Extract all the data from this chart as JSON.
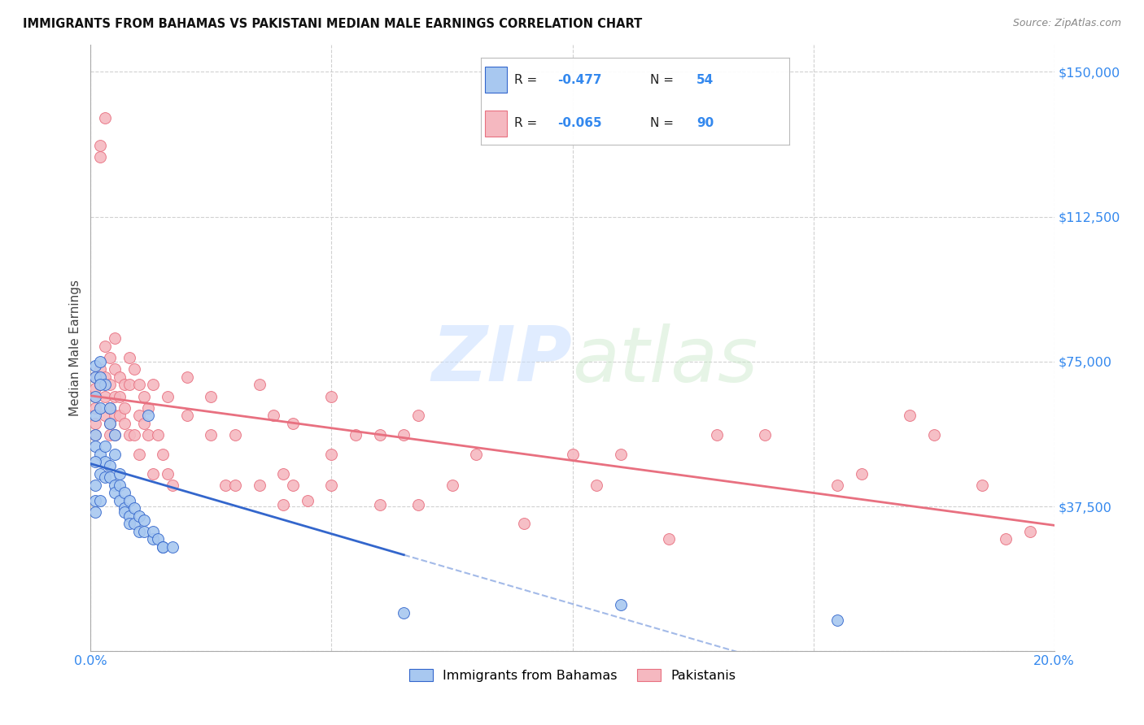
{
  "title": "IMMIGRANTS FROM BAHAMAS VS PAKISTANI MEDIAN MALE EARNINGS CORRELATION CHART",
  "source": "Source: ZipAtlas.com",
  "ylabel": "Median Male Earnings",
  "xlim": [
    0.0,
    0.2
  ],
  "ylim": [
    0,
    157000
  ],
  "legend_blue_label": "Immigrants from Bahamas",
  "legend_pink_label": "Pakistanis",
  "R_blue": "-0.477",
  "N_blue": "54",
  "R_pink": "-0.065",
  "N_pink": "90",
  "blue_color": "#A8C8F0",
  "pink_color": "#F5B8C0",
  "line_blue": "#3366CC",
  "line_pink": "#E87080",
  "ytick_vals": [
    0,
    37500,
    75000,
    112500,
    150000
  ],
  "ytick_labels": [
    "",
    "$37,500",
    "$75,000",
    "$112,500",
    "$150,000"
  ],
  "xtick_vals": [
    0.0,
    0.05,
    0.1,
    0.15,
    0.2
  ],
  "blue_scatter": [
    [
      0.001,
      74000
    ],
    [
      0.001,
      71000
    ],
    [
      0.002,
      75000
    ],
    [
      0.002,
      71000
    ],
    [
      0.001,
      66000
    ],
    [
      0.001,
      61000
    ],
    [
      0.002,
      63000
    ],
    [
      0.001,
      56000
    ],
    [
      0.001,
      53000
    ],
    [
      0.002,
      51000
    ],
    [
      0.003,
      49000
    ],
    [
      0.003,
      53000
    ],
    [
      0.002,
      46000
    ],
    [
      0.003,
      45000
    ],
    [
      0.003,
      69000
    ],
    [
      0.004,
      63000
    ],
    [
      0.004,
      59000
    ],
    [
      0.005,
      56000
    ],
    [
      0.005,
      51000
    ],
    [
      0.004,
      48000
    ],
    [
      0.004,
      45000
    ],
    [
      0.005,
      43000
    ],
    [
      0.005,
      41000
    ],
    [
      0.006,
      46000
    ],
    [
      0.006,
      43000
    ],
    [
      0.006,
      39000
    ],
    [
      0.007,
      41000
    ],
    [
      0.007,
      37000
    ],
    [
      0.007,
      36000
    ],
    [
      0.008,
      39000
    ],
    [
      0.008,
      35000
    ],
    [
      0.008,
      33000
    ],
    [
      0.009,
      37000
    ],
    [
      0.009,
      33000
    ],
    [
      0.01,
      35000
    ],
    [
      0.01,
      31000
    ],
    [
      0.011,
      34000
    ],
    [
      0.011,
      31000
    ],
    [
      0.012,
      61000
    ],
    [
      0.013,
      29000
    ],
    [
      0.013,
      31000
    ],
    [
      0.014,
      29000
    ],
    [
      0.002,
      69000
    ],
    [
      0.001,
      49000
    ],
    [
      0.001,
      43000
    ],
    [
      0.001,
      39000
    ],
    [
      0.001,
      36000
    ],
    [
      0.002,
      39000
    ],
    [
      0.015,
      27000
    ],
    [
      0.015,
      27000
    ],
    [
      0.017,
      27000
    ],
    [
      0.065,
      10000
    ],
    [
      0.11,
      12000
    ],
    [
      0.155,
      8000
    ]
  ],
  "pink_scatter": [
    [
      0.001,
      66000
    ],
    [
      0.001,
      63000
    ],
    [
      0.001,
      59000
    ],
    [
      0.001,
      56000
    ],
    [
      0.001,
      71000
    ],
    [
      0.001,
      68000
    ],
    [
      0.002,
      131000
    ],
    [
      0.003,
      138000
    ],
    [
      0.002,
      128000
    ],
    [
      0.002,
      69000
    ],
    [
      0.002,
      73000
    ],
    [
      0.003,
      79000
    ],
    [
      0.003,
      71000
    ],
    [
      0.003,
      66000
    ],
    [
      0.003,
      61000
    ],
    [
      0.004,
      76000
    ],
    [
      0.004,
      69000
    ],
    [
      0.004,
      63000
    ],
    [
      0.004,
      59000
    ],
    [
      0.004,
      56000
    ],
    [
      0.005,
      81000
    ],
    [
      0.005,
      73000
    ],
    [
      0.005,
      66000
    ],
    [
      0.005,
      61000
    ],
    [
      0.005,
      56000
    ],
    [
      0.006,
      71000
    ],
    [
      0.006,
      66000
    ],
    [
      0.006,
      61000
    ],
    [
      0.007,
      69000
    ],
    [
      0.007,
      63000
    ],
    [
      0.007,
      59000
    ],
    [
      0.008,
      76000
    ],
    [
      0.008,
      69000
    ],
    [
      0.008,
      56000
    ],
    [
      0.009,
      73000
    ],
    [
      0.009,
      56000
    ],
    [
      0.01,
      69000
    ],
    [
      0.01,
      61000
    ],
    [
      0.01,
      51000
    ],
    [
      0.011,
      66000
    ],
    [
      0.011,
      59000
    ],
    [
      0.012,
      63000
    ],
    [
      0.012,
      56000
    ],
    [
      0.013,
      46000
    ],
    [
      0.013,
      69000
    ],
    [
      0.014,
      56000
    ],
    [
      0.015,
      51000
    ],
    [
      0.016,
      46000
    ],
    [
      0.016,
      66000
    ],
    [
      0.017,
      43000
    ],
    [
      0.02,
      71000
    ],
    [
      0.02,
      61000
    ],
    [
      0.025,
      56000
    ],
    [
      0.025,
      66000
    ],
    [
      0.028,
      43000
    ],
    [
      0.03,
      56000
    ],
    [
      0.03,
      43000
    ],
    [
      0.035,
      69000
    ],
    [
      0.035,
      43000
    ],
    [
      0.038,
      61000
    ],
    [
      0.04,
      46000
    ],
    [
      0.04,
      38000
    ],
    [
      0.042,
      43000
    ],
    [
      0.045,
      39000
    ],
    [
      0.05,
      66000
    ],
    [
      0.05,
      51000
    ],
    [
      0.055,
      56000
    ],
    [
      0.06,
      38000
    ],
    [
      0.065,
      56000
    ],
    [
      0.068,
      38000
    ],
    [
      0.075,
      43000
    ],
    [
      0.08,
      51000
    ],
    [
      0.09,
      33000
    ],
    [
      0.1,
      51000
    ],
    [
      0.105,
      43000
    ],
    [
      0.11,
      51000
    ],
    [
      0.12,
      29000
    ],
    [
      0.13,
      56000
    ],
    [
      0.14,
      56000
    ],
    [
      0.155,
      43000
    ],
    [
      0.16,
      46000
    ],
    [
      0.17,
      61000
    ],
    [
      0.175,
      56000
    ],
    [
      0.185,
      43000
    ],
    [
      0.19,
      29000
    ],
    [
      0.195,
      31000
    ],
    [
      0.068,
      61000
    ],
    [
      0.06,
      56000
    ],
    [
      0.05,
      43000
    ],
    [
      0.042,
      59000
    ]
  ]
}
